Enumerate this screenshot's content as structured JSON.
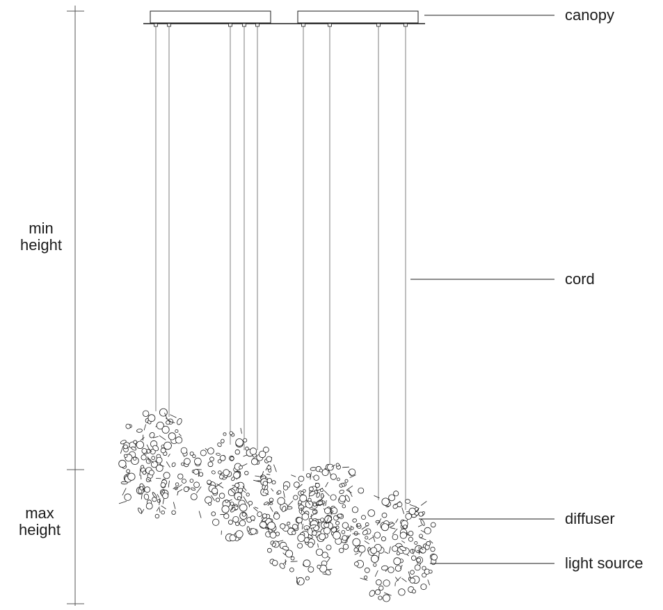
{
  "dimensions": {
    "min_height": {
      "line1": "min",
      "line2": "height"
    },
    "max_height": {
      "line1": "max",
      "line2": "height"
    }
  },
  "callouts": {
    "canopy": "canopy",
    "cord": "cord",
    "diffuser": "diffuser",
    "light_source": "light source"
  },
  "colors": {
    "ink": "#1a1a1a",
    "cord": "#9a9a9a"
  }
}
